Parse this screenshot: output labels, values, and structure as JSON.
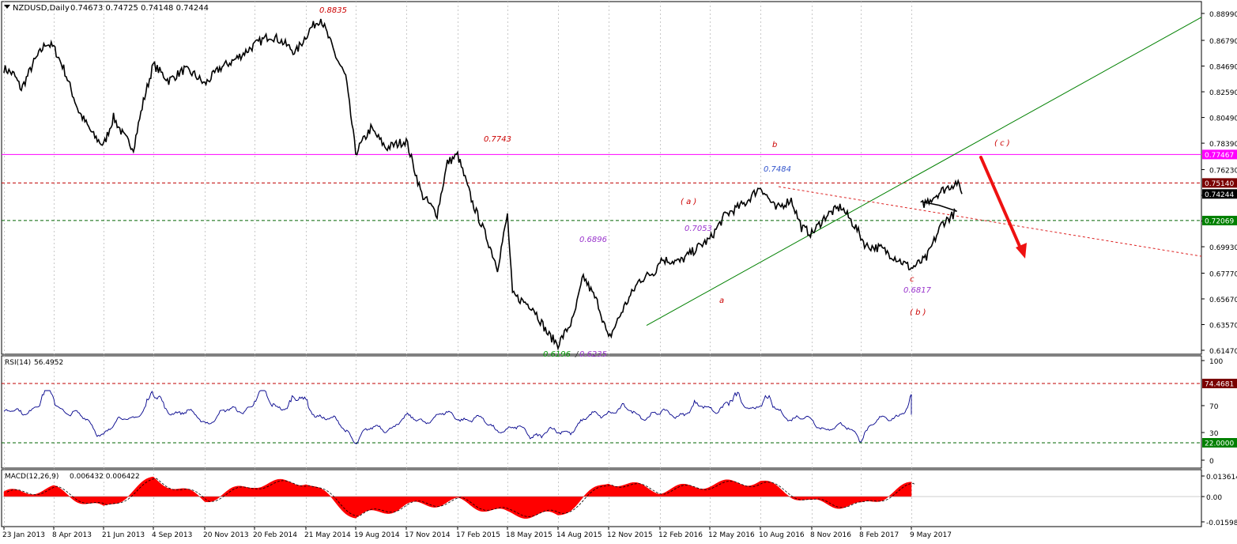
{
  "header": {
    "symbol": "NZDUSD,Daily",
    "ohlc": "0.74673 0.74725 0.74148 0.74244"
  },
  "colors": {
    "price": "#000000",
    "magenta_line": "#ff00ff",
    "red_dash": "#c00000",
    "green_dash": "#006400",
    "trend_green": "#008000",
    "rsi_line": "#00008b",
    "macd_hist": "#ff0000",
    "arrow": "#ee1111",
    "label_red": "#cc0000",
    "label_purple": "#9933cc",
    "label_blue": "#3355cc",
    "label_green": "#009900",
    "tag_magenta": "#ff00ff",
    "tag_red": "#7a0000",
    "tag_green": "#008000",
    "tag_black": "#000000"
  },
  "chart_data": [
    {
      "type": "line",
      "panel": "price",
      "series": [
        {
          "x": [
            "23 Jan 2013",
            "8 Apr 2013",
            "21 Jun 2013",
            "4 Sep 2013",
            "20 Nov 2013",
            "20 Feb 2014",
            "21 May 2014",
            "19 Aug 2014",
            "17 Nov 2014",
            "17 Feb 2015",
            "18 May 2015",
            "14 Aug 2015",
            "12 Nov 2015",
            "12 Feb 2016",
            "12 May 2016",
            "10 Aug 2016",
            "8 Nov 2016",
            "8 Feb 2017",
            "9 May 2017",
            "23 Jun 2017"
          ],
          "values": [
            0.845,
            0.862,
            0.782,
            0.848,
            0.832,
            0.864,
            0.8835,
            0.776,
            0.786,
            0.7743,
            0.725,
            0.6196,
            0.6235,
            0.689,
            0.7053,
            0.7484,
            0.71,
            0.6817,
            0.733,
            0.7424
          ]
        }
      ],
      "ylim": [
        0.6147,
        0.8899
      ],
      "y_ticks": [
        "0.88990",
        "0.86790",
        "0.84690",
        "0.82590",
        "0.80490",
        "0.78390",
        "0.76230",
        "0.74130",
        "0.72030",
        "0.69930",
        "0.67770",
        "0.65670",
        "0.63570",
        "0.61470"
      ],
      "x_ticks": [
        "23 Jan 2013",
        "8 Apr 2013",
        "21 Jun 2013",
        "4 Sep 2013",
        "20 Nov 2013",
        "20 Feb 2014",
        "21 May 2014",
        "19 Aug 2014",
        "17 Nov 2014",
        "17 Feb 2015",
        "18 May 2015",
        "14 Aug 2015",
        "12 Nov 2015",
        "12 Feb 2016",
        "12 May 2016",
        "10 Aug 2016",
        "8 Nov 2016",
        "8 Feb 2017",
        "9 May 2017"
      ],
      "levels": [
        {
          "value": 0.77467,
          "label": "0.77467",
          "style": "solid"
        },
        {
          "value": 0.7514,
          "label": "0.75140",
          "style": "dash"
        },
        {
          "value": 0.74244,
          "label": "0.74244",
          "style": "current"
        },
        {
          "value": 0.72069,
          "label": "0.72069",
          "style": "dash"
        }
      ],
      "annotations": [
        {
          "text": "0.8835"
        },
        {
          "text": "0.7743"
        },
        {
          "text": "0.6896"
        },
        {
          "text": "0.6196"
        },
        {
          "text": "/"
        },
        {
          "text": "0.6235"
        },
        {
          "text": "0.7053"
        },
        {
          "text": "0.7484"
        },
        {
          "text": "0.6817"
        },
        {
          "text": "b"
        },
        {
          "text": "( a )"
        },
        {
          "text": "a"
        },
        {
          "text": "c"
        },
        {
          "text": "( b )"
        },
        {
          "text": "( c )"
        }
      ]
    },
    {
      "type": "line",
      "panel": "rsi",
      "series": [
        {
          "name": "RSI(14)",
          "x": [
            "23 Jan 2013",
            "8 Apr 2013",
            "21 Jun 2013",
            "4 Sep 2013",
            "20 Nov 2013",
            "20 Feb 2014",
            "21 May 2014",
            "19 Aug 2014",
            "17 Nov 2014",
            "17 Feb 2015",
            "18 May 2015",
            "14 Aug 2015",
            "12 Nov 2015",
            "12 Feb 2016",
            "12 May 2016",
            "10 Aug 2016",
            "8 Nov 2016",
            "8 Feb 2017",
            "9 May 2017",
            "23 Jun 2017"
          ],
          "values": [
            56,
            76,
            30,
            74,
            48,
            73,
            70,
            25,
            48,
            56,
            34,
            28,
            64,
            55,
            68,
            72,
            44,
            30,
            70,
            56.4952
          ]
        }
      ],
      "current": "56.4952",
      "ylim": [
        0,
        100
      ],
      "y_ticks": [
        "100",
        "70",
        "30",
        "0"
      ],
      "levels": [
        {
          "value": 74.4681,
          "label": "74.4681"
        },
        {
          "value": 22.0,
          "label": "22.0000"
        }
      ]
    },
    {
      "type": "bar",
      "panel": "macd",
      "series": [
        {
          "name": "MACD(12,26,9)",
          "x": [
            "23 Jan 2013",
            "8 Apr 2013",
            "21 Jun 2013",
            "4 Sep 2013",
            "20 Nov 2013",
            "20 Feb 2014",
            "21 May 2014",
            "19 Aug 2014",
            "17 Nov 2014",
            "17 Feb 2015",
            "18 May 2015",
            "14 Aug 2015",
            "12 Nov 2015",
            "12 Feb 2016",
            "12 May 2016",
            "10 Aug 2016",
            "8 Nov 2016",
            "8 Feb 2017",
            "9 May 2017",
            "23 Jun 2017"
          ],
          "values": [
            0.002,
            0.005,
            -0.008,
            0.012,
            -0.002,
            0.008,
            0.01,
            -0.013,
            -0.006,
            -0.003,
            -0.011,
            -0.012,
            0.01,
            0.004,
            0.008,
            0.01,
            -0.004,
            -0.006,
            0.008,
            0.006432
          ]
        }
      ],
      "current": "0.006432 0.006422",
      "ylim": [
        -0.015985,
        0.013614
      ],
      "y_ticks": [
        "0.013614",
        "0.00",
        "-0.015985"
      ]
    }
  ]
}
